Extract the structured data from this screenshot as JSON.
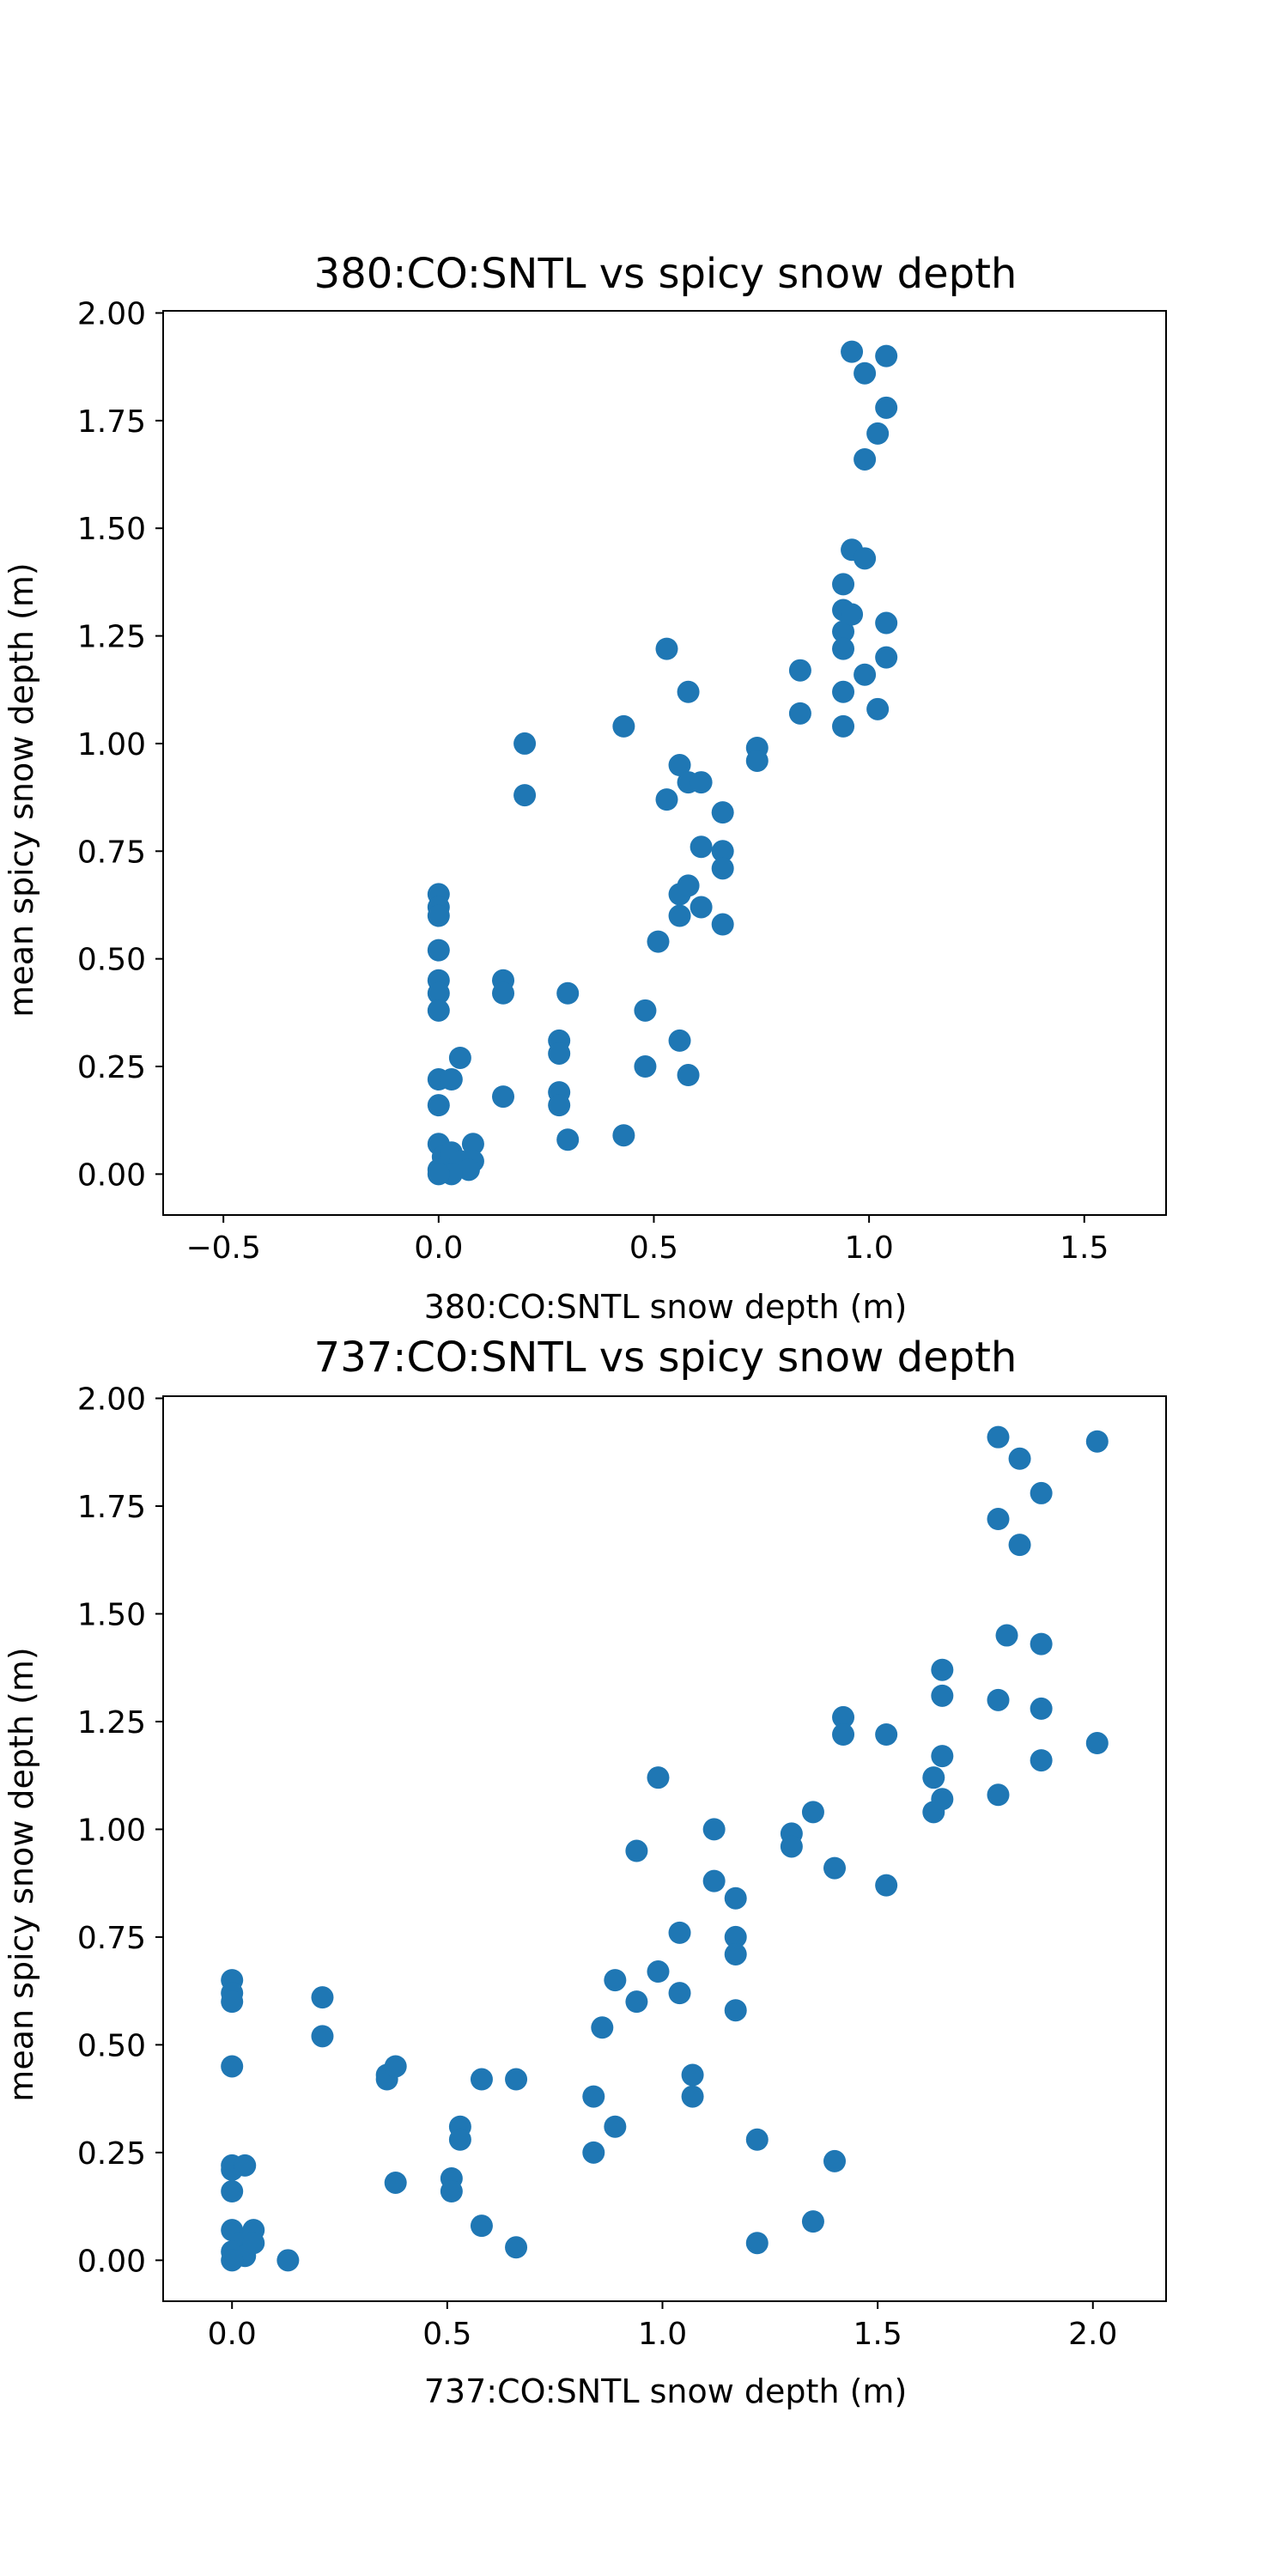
{
  "chart_data": [
    {
      "type": "scatter",
      "title": "380:CO:SNTL vs spicy snow depth",
      "xlabel": "380:CO:SNTL snow depth (m)",
      "ylabel": "mean spicy snow depth (m)",
      "xlim": [
        -0.64,
        1.69
      ],
      "ylim": [
        -0.095,
        2.005
      ],
      "xticks": [
        -0.5,
        0.0,
        0.5,
        1.0,
        1.5
      ],
      "xtick_labels": [
        "−0.5",
        "0.0",
        "0.5",
        "1.0",
        "1.5"
      ],
      "yticks": [
        0.0,
        0.25,
        0.5,
        0.75,
        1.0,
        1.25,
        1.5,
        1.75,
        2.0
      ],
      "ytick_labels": [
        "0.00",
        "0.25",
        "0.50",
        "0.75",
        "1.00",
        "1.25",
        "1.50",
        "1.75",
        "2.00"
      ],
      "grid": false,
      "marker_color": "#1f77b4",
      "points": [
        [
          0.0,
          0.65
        ],
        [
          0.0,
          0.62
        ],
        [
          0.0,
          0.6
        ],
        [
          0.0,
          0.52
        ],
        [
          0.0,
          0.45
        ],
        [
          0.0,
          0.42
        ],
        [
          0.0,
          0.38
        ],
        [
          0.0,
          0.22
        ],
        [
          0.0,
          0.16
        ],
        [
          0.03,
          0.22
        ],
        [
          0.05,
          0.27
        ],
        [
          0.0,
          0.07
        ],
        [
          0.01,
          0.04
        ],
        [
          0.02,
          0.02
        ],
        [
          0.0,
          0.01
        ],
        [
          0.03,
          0.05
        ],
        [
          0.05,
          0.03
        ],
        [
          0.08,
          0.07
        ],
        [
          0.08,
          0.03
        ],
        [
          0.07,
          0.01
        ],
        [
          0.03,
          0.0
        ],
        [
          0.0,
          0.0
        ],
        [
          0.15,
          0.45
        ],
        [
          0.15,
          0.42
        ],
        [
          0.15,
          0.18
        ],
        [
          0.2,
          1.0
        ],
        [
          0.2,
          0.88
        ],
        [
          0.28,
          0.31
        ],
        [
          0.28,
          0.28
        ],
        [
          0.28,
          0.19
        ],
        [
          0.28,
          0.16
        ],
        [
          0.3,
          0.42
        ],
        [
          0.3,
          0.08
        ],
        [
          0.43,
          1.04
        ],
        [
          0.43,
          0.09
        ],
        [
          0.48,
          0.38
        ],
        [
          0.48,
          0.25
        ],
        [
          0.51,
          0.54
        ],
        [
          0.53,
          1.22
        ],
        [
          0.53,
          0.87
        ],
        [
          0.56,
          0.95
        ],
        [
          0.56,
          0.65
        ],
        [
          0.56,
          0.6
        ],
        [
          0.56,
          0.31
        ],
        [
          0.58,
          1.12
        ],
        [
          0.58,
          0.91
        ],
        [
          0.58,
          0.67
        ],
        [
          0.58,
          0.23
        ],
        [
          0.61,
          0.91
        ],
        [
          0.61,
          0.76
        ],
        [
          0.61,
          0.62
        ],
        [
          0.66,
          0.84
        ],
        [
          0.66,
          0.75
        ],
        [
          0.66,
          0.71
        ],
        [
          0.66,
          0.58
        ],
        [
          0.74,
          0.99
        ],
        [
          0.74,
          0.96
        ],
        [
          0.84,
          1.17
        ],
        [
          0.84,
          1.07
        ],
        [
          0.94,
          1.37
        ],
        [
          0.94,
          1.31
        ],
        [
          0.94,
          1.26
        ],
        [
          0.94,
          1.22
        ],
        [
          0.94,
          1.12
        ],
        [
          0.94,
          1.04
        ],
        [
          0.96,
          1.91
        ],
        [
          0.96,
          1.45
        ],
        [
          0.96,
          1.3
        ],
        [
          0.99,
          1.86
        ],
        [
          0.99,
          1.43
        ],
        [
          0.99,
          1.16
        ],
        [
          0.99,
          1.66
        ],
        [
          1.02,
          1.72
        ],
        [
          1.02,
          1.08
        ],
        [
          1.04,
          1.9
        ],
        [
          1.04,
          1.78
        ],
        [
          1.04,
          1.28
        ],
        [
          1.04,
          1.2
        ]
      ]
    },
    {
      "type": "scatter",
      "title": "737:CO:SNTL vs spicy snow depth",
      "xlabel": "737:CO:SNTL snow depth (m)",
      "ylabel": "mean spicy snow depth (m)",
      "xlim": [
        -0.16,
        2.17
      ],
      "ylim": [
        -0.095,
        2.005
      ],
      "xticks": [
        0.0,
        0.5,
        1.0,
        1.5,
        2.0
      ],
      "xtick_labels": [
        "0.0",
        "0.5",
        "1.0",
        "1.5",
        "2.0"
      ],
      "yticks": [
        0.0,
        0.25,
        0.5,
        0.75,
        1.0,
        1.25,
        1.5,
        1.75,
        2.0
      ],
      "ytick_labels": [
        "0.00",
        "0.25",
        "0.50",
        "0.75",
        "1.00",
        "1.25",
        "1.50",
        "1.75",
        "2.00"
      ],
      "grid": false,
      "marker_color": "#1f77b4",
      "points": [
        [
          0.0,
          0.65
        ],
        [
          0.0,
          0.62
        ],
        [
          0.0,
          0.6
        ],
        [
          0.0,
          0.45
        ],
        [
          0.0,
          0.22
        ],
        [
          0.0,
          0.21
        ],
        [
          0.03,
          0.22
        ],
        [
          0.0,
          0.16
        ],
        [
          0.0,
          0.07
        ],
        [
          0.02,
          0.04
        ],
        [
          0.0,
          0.02
        ],
        [
          0.03,
          0.01
        ],
        [
          0.0,
          0.0
        ],
        [
          0.05,
          0.07
        ],
        [
          0.05,
          0.04
        ],
        [
          0.13,
          0.0
        ],
        [
          0.21,
          0.61
        ],
        [
          0.21,
          0.52
        ],
        [
          0.36,
          0.43
        ],
        [
          0.36,
          0.42
        ],
        [
          0.38,
          0.45
        ],
        [
          0.38,
          0.18
        ],
        [
          0.51,
          0.19
        ],
        [
          0.51,
          0.16
        ],
        [
          0.53,
          0.31
        ],
        [
          0.53,
          0.28
        ],
        [
          0.58,
          0.42
        ],
        [
          0.58,
          0.08
        ],
        [
          0.66,
          0.42
        ],
        [
          0.66,
          0.03
        ],
        [
          0.84,
          0.38
        ],
        [
          0.84,
          0.25
        ],
        [
          0.86,
          0.54
        ],
        [
          0.89,
          0.65
        ],
        [
          0.89,
          0.31
        ],
        [
          0.94,
          0.95
        ],
        [
          0.94,
          0.6
        ],
        [
          0.99,
          1.12
        ],
        [
          0.99,
          0.67
        ],
        [
          1.04,
          0.76
        ],
        [
          1.04,
          0.62
        ],
        [
          1.07,
          0.43
        ],
        [
          1.07,
          0.38
        ],
        [
          1.12,
          1.0
        ],
        [
          1.12,
          0.88
        ],
        [
          1.17,
          0.84
        ],
        [
          1.17,
          0.75
        ],
        [
          1.17,
          0.71
        ],
        [
          1.17,
          0.58
        ],
        [
          1.22,
          0.28
        ],
        [
          1.22,
          0.04
        ],
        [
          1.3,
          0.99
        ],
        [
          1.3,
          0.96
        ],
        [
          1.35,
          1.04
        ],
        [
          1.35,
          0.09
        ],
        [
          1.4,
          0.91
        ],
        [
          1.4,
          0.23
        ],
        [
          1.42,
          1.26
        ],
        [
          1.42,
          1.22
        ],
        [
          1.52,
          1.22
        ],
        [
          1.52,
          0.87
        ],
        [
          1.63,
          1.12
        ],
        [
          1.63,
          1.04
        ],
        [
          1.65,
          1.37
        ],
        [
          1.65,
          1.31
        ],
        [
          1.65,
          1.17
        ],
        [
          1.65,
          1.07
        ],
        [
          1.78,
          1.91
        ],
        [
          1.78,
          1.72
        ],
        [
          1.78,
          1.3
        ],
        [
          1.78,
          1.08
        ],
        [
          1.8,
          1.45
        ],
        [
          1.83,
          1.86
        ],
        [
          1.83,
          1.66
        ],
        [
          1.88,
          1.78
        ],
        [
          1.88,
          1.43
        ],
        [
          1.88,
          1.28
        ],
        [
          1.88,
          1.16
        ],
        [
          2.01,
          1.9
        ],
        [
          2.01,
          1.2
        ]
      ]
    }
  ]
}
